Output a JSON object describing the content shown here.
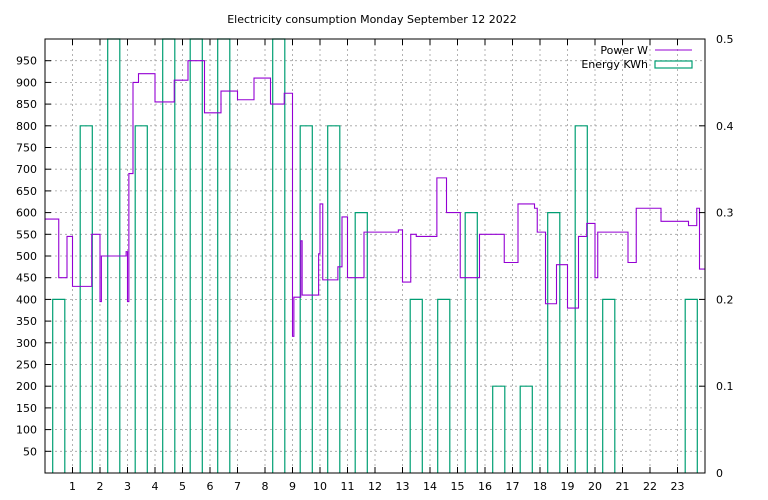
{
  "chart_data": {
    "type": "line",
    "title": "Electricity consumption Monday September 12 2022",
    "xlabel": "",
    "ylabel": "",
    "y2label": "",
    "xlim": [
      0,
      24
    ],
    "ylim": [
      0,
      1000
    ],
    "y2lim": [
      0,
      0.5
    ],
    "grid": true,
    "legend_position": "top-right",
    "x_ticks": [
      "1",
      "2",
      "3",
      "4",
      "5",
      "6",
      "7",
      "8",
      "9",
      "10",
      "11",
      "12",
      "13",
      "14",
      "15",
      "16",
      "17",
      "18",
      "19",
      "20",
      "21",
      "22",
      "23"
    ],
    "y_ticks": [
      "50",
      "100",
      "150",
      "200",
      "250",
      "300",
      "350",
      "400",
      "450",
      "500",
      "550",
      "600",
      "650",
      "700",
      "750",
      "800",
      "850",
      "900",
      "950"
    ],
    "y2_ticks": [
      "0",
      "0.1",
      "0.2",
      "0.3",
      "0.4",
      "0.5"
    ],
    "series": [
      {
        "name": "Power W",
        "axis": "left",
        "color": "#9400d3",
        "style": "step",
        "x": [
          0,
          0.5,
          0.55,
          0.8,
          1.0,
          1.1,
          1.2,
          1.7,
          1.75,
          2.0,
          2.05,
          2.15,
          2.9,
          2.95,
          3.0,
          3.05,
          3.2,
          3.4,
          3.6,
          4.0,
          4.2,
          4.7,
          5.2,
          5.8,
          6.4,
          7.0,
          7.6,
          8.2,
          8.7,
          9.0,
          9.05,
          9.3,
          9.35,
          9.5,
          9.95,
          10.0,
          10.1,
          10.3,
          10.65,
          10.8,
          10.9,
          11.0,
          11.1,
          11.3,
          11.6,
          12.5,
          12.85,
          13.0,
          13.1,
          13.3,
          13.5,
          14.0,
          14.25,
          14.35,
          14.6,
          15.0,
          15.1,
          15.3,
          15.8,
          16.5,
          16.7,
          17.2,
          17.3,
          17.8,
          17.9,
          18.1,
          18.2,
          18.5,
          18.6,
          18.8,
          19.0,
          19.1,
          19.4,
          19.7,
          19.85,
          20.0,
          20.1,
          20.5,
          21.2,
          21.4,
          21.5,
          22.4,
          23.4,
          23.45,
          23.7,
          23.8,
          24.0
        ],
        "y": [
          585,
          450,
          450,
          545,
          430,
          430,
          430,
          550,
          550,
          395,
          500,
          500,
          500,
          510,
          395,
          690,
          900,
          920,
          920,
          855,
          855,
          905,
          950,
          830,
          880,
          860,
          910,
          850,
          875,
          315,
          405,
          535,
          410,
          410,
          505,
          620,
          445,
          445,
          475,
          590,
          590,
          450,
          450,
          450,
          555,
          555,
          560,
          440,
          440,
          550,
          545,
          545,
          680,
          680,
          600,
          600,
          450,
          450,
          550,
          550,
          485,
          620,
          620,
          610,
          555,
          555,
          390,
          390,
          480,
          480,
          380,
          380,
          545,
          575,
          575,
          450,
          555,
          555,
          485,
          485,
          610,
          580,
          570,
          570,
          610,
          470,
          470
        ]
      },
      {
        "name": "Energy KWh",
        "axis": "right",
        "color": "#009e73",
        "style": "bars",
        "x": [
          0,
          1,
          2,
          3,
          4,
          5,
          6,
          7,
          8,
          9,
          10,
          11,
          12,
          13,
          14,
          15,
          16,
          17,
          18,
          19,
          20,
          21,
          22,
          23
        ],
        "y": [
          0.2,
          0.4,
          0.5,
          0.4,
          0.5,
          0.5,
          0.5,
          0.0,
          0.5,
          0.4,
          0.4,
          0.3,
          0.0,
          0.2,
          0.2,
          0.3,
          0.1,
          0.1,
          0.3,
          0.4,
          0.2,
          0.0,
          0.0,
          0.2
        ]
      }
    ]
  }
}
